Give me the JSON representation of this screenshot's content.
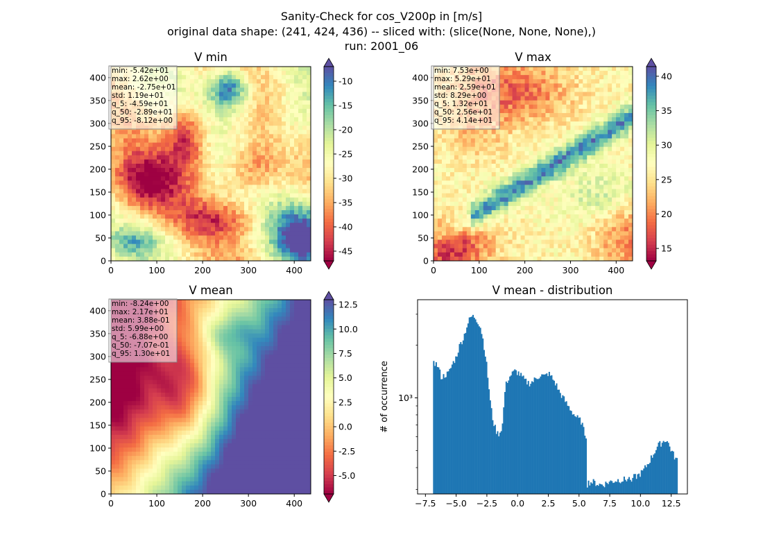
{
  "figure": {
    "title_lines": [
      "Sanity-Check for cos_V200p in [m/s]",
      "original data shape: (241, 424, 436) -- sliced with: (slice(None, None, None),)",
      "run: 2001_06"
    ]
  },
  "colormap": {
    "name": "Spectral",
    "stops": [
      "#9e0142",
      "#d53e4f",
      "#f46d43",
      "#fdae61",
      "#fee08b",
      "#ffffbf",
      "#e6f598",
      "#abdda4",
      "#66c2a5",
      "#3288bd",
      "#5e4fa2"
    ]
  },
  "chart_data": [
    {
      "type": "heatmap",
      "title": "V min",
      "x_ticks": [
        "0",
        "100",
        "200",
        "300",
        "400"
      ],
      "y_ticks": [
        "0",
        "50",
        "100",
        "150",
        "200",
        "250",
        "300",
        "350",
        "400"
      ],
      "xlim": [
        0,
        436
      ],
      "ylim": [
        0,
        424
      ],
      "colorbar": {
        "ticks": [
          "-10",
          "-15",
          "-20",
          "-25",
          "-30",
          "-35",
          "-40",
          "-45"
        ],
        "range": [
          -47,
          -7
        ]
      },
      "stats": [
        "min: -5.42e+01",
        "max: 2.62e+00",
        "mean: -2.75e+01",
        "std: 1.19e+01",
        "q_5: -4.59e+01",
        "q_50: -2.89e+01",
        "q_95: -8.12e+00"
      ]
    },
    {
      "type": "heatmap",
      "title": "V max",
      "x_ticks": [
        "0",
        "100",
        "200",
        "300",
        "400"
      ],
      "y_ticks": [
        "0",
        "50",
        "100",
        "150",
        "200",
        "250",
        "300",
        "350",
        "400"
      ],
      "xlim": [
        0,
        436
      ],
      "ylim": [
        0,
        424
      ],
      "colorbar": {
        "ticks": [
          "40",
          "35",
          "30",
          "25",
          "20",
          "15"
        ],
        "range": [
          13.2,
          41.4
        ]
      },
      "stats": [
        "min: 7.53e+00",
        "max: 5.29e+01",
        "mean: 2.59e+01",
        "std: 8.29e+00",
        "q_5: 1.32e+01",
        "q_50: 2.56e+01",
        "q_95: 4.14e+01"
      ]
    },
    {
      "type": "heatmap",
      "title": "V mean",
      "x_ticks": [
        "0",
        "100",
        "200",
        "300",
        "400"
      ],
      "y_ticks": [
        "0",
        "50",
        "100",
        "150",
        "200",
        "250",
        "300",
        "350",
        "400"
      ],
      "xlim": [
        0,
        436
      ],
      "ylim": [
        0,
        424
      ],
      "colorbar": {
        "ticks": [
          "12.5",
          "10.0",
          "7.5",
          "5.0",
          "2.5",
          "0.0",
          "-2.5",
          "-5.0"
        ],
        "range": [
          -6.88,
          13.0
        ]
      },
      "stats": [
        "min: -8.24e+00",
        "max: 2.17e+01",
        "mean: 3.88e-01",
        "std: 5.99e+00",
        "q_5: -6.88e+00",
        "q_50: -7.07e-01",
        "q_95: 1.30e+01"
      ]
    },
    {
      "type": "bar",
      "title": "V mean - distribution",
      "ylabel": "# of occurrence",
      "y_scale": "log",
      "y_tick_label": "10³",
      "x_ticks": [
        "−7.5",
        "−5.0",
        "−2.5",
        "0.0",
        "2.5",
        "5.0",
        "7.5",
        "10.0",
        "12.5"
      ],
      "xlim": [
        -8.14,
        13.82
      ],
      "ylim": [
        283,
        3630
      ],
      "bar_color": "#1f77b4",
      "bins": {
        "start": -6.88,
        "width": 0.1
      },
      "anchors": [
        [
          -6.88,
          1750
        ],
        [
          -6.8,
          1600
        ],
        [
          -6.5,
          1520
        ],
        [
          -6.2,
          1300
        ],
        [
          -5.9,
          1350
        ],
        [
          -5.6,
          1380
        ],
        [
          -5.3,
          1560
        ],
        [
          -5.0,
          1700
        ],
        [
          -4.7,
          2000
        ],
        [
          -4.4,
          2200
        ],
        [
          -4.1,
          2600
        ],
        [
          -3.8,
          2900
        ],
        [
          -3.5,
          2900
        ],
        [
          -3.2,
          2700
        ],
        [
          -3.0,
          2500
        ],
        [
          -2.8,
          2100
        ],
        [
          -2.6,
          1700
        ],
        [
          -2.4,
          1250
        ],
        [
          -2.2,
          900
        ],
        [
          -2.0,
          740
        ],
        [
          -1.8,
          660
        ],
        [
          -1.6,
          620
        ],
        [
          -1.4,
          640
        ],
        [
          -1.2,
          720
        ],
        [
          -1.0,
          1150
        ],
        [
          -0.8,
          1270
        ],
        [
          -0.5,
          1360
        ],
        [
          -0.2,
          1420
        ],
        [
          0.1,
          1380
        ],
        [
          0.4,
          1300
        ],
        [
          0.7,
          1230
        ],
        [
          1.0,
          1210
        ],
        [
          1.3,
          1250
        ],
        [
          1.6,
          1310
        ],
        [
          1.9,
          1350
        ],
        [
          2.2,
          1320
        ],
        [
          2.5,
          1380
        ],
        [
          2.8,
          1300
        ],
        [
          3.1,
          1200
        ],
        [
          3.4,
          1080
        ],
        [
          3.7,
          1000
        ],
        [
          4.0,
          920
        ],
        [
          4.3,
          860
        ],
        [
          4.6,
          800
        ],
        [
          4.9,
          760
        ],
        [
          5.2,
          730
        ],
        [
          5.4,
          640
        ],
        [
          5.6,
          600
        ],
        [
          5.65,
          320
        ],
        [
          5.8,
          330
        ],
        [
          6.2,
          330
        ],
        [
          6.6,
          320
        ],
        [
          7.0,
          320
        ],
        [
          7.4,
          330
        ],
        [
          7.8,
          335
        ],
        [
          8.2,
          340
        ],
        [
          8.6,
          340
        ],
        [
          9.0,
          345
        ],
        [
          9.4,
          350
        ],
        [
          9.8,
          360
        ],
        [
          10.2,
          380
        ],
        [
          10.6,
          420
        ],
        [
          11.0,
          470
        ],
        [
          11.4,
          530
        ],
        [
          11.8,
          560
        ],
        [
          12.1,
          580
        ],
        [
          12.4,
          520
        ],
        [
          12.7,
          470
        ],
        [
          12.95,
          440
        ]
      ]
    }
  ]
}
